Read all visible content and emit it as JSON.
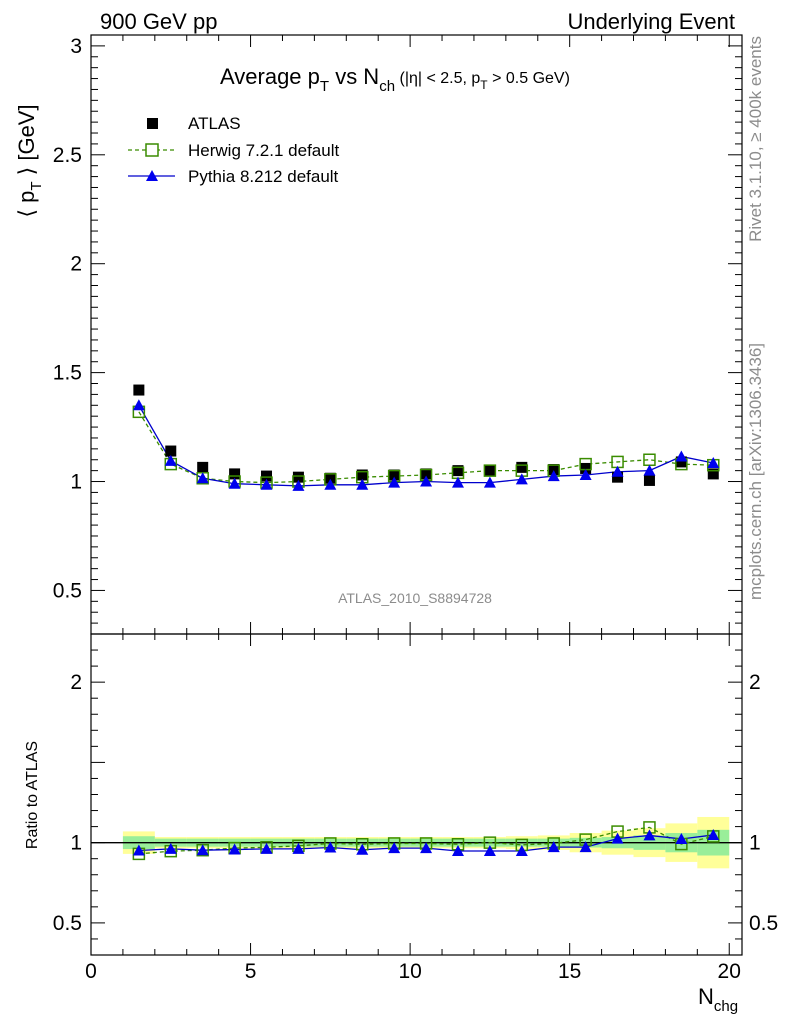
{
  "header": {
    "left": "900 GeV pp",
    "right": "Underlying Event"
  },
  "side": {
    "rivet": "Rivet 3.1.10, ≥ 400k events",
    "mcplots": "mcplots.cern.ch [arXiv:1306.3436]"
  },
  "chart_data": [
    {
      "type": "scatter",
      "title": {
        "a": "Average p",
        "a_sub": "T",
        "b": " vs N",
        "b_sub": "ch",
        "c": " (|η| < 2.5, p",
        "c_sub": "T",
        "d": " > 0.5 GeV)"
      },
      "ylabel": {
        "pre": "⟨ p",
        "sub": "T",
        "post": " ⟩ [GeV]"
      },
      "watermark": "ATLAS_2010_S8894728",
      "ylim": [
        0.3,
        3.05
      ],
      "xlim": [
        0,
        20.4
      ],
      "yticks": [
        0.5,
        1,
        1.5,
        2,
        2.5,
        3
      ],
      "ytick_labels": [
        "0.5",
        "1",
        "1.5",
        "2",
        "2.5",
        "3"
      ],
      "legend": {
        "atlas": "ATLAS",
        "herwig": "Herwig 7.2.1 default",
        "pythia": "Pythia 8.212 default"
      },
      "x": [
        1.5,
        2.5,
        3.5,
        4.5,
        5.5,
        6.5,
        7.5,
        8.5,
        9.5,
        10.5,
        11.5,
        12.5,
        13.5,
        14.5,
        15.5,
        16.5,
        17.5,
        18.5,
        19.5
      ],
      "series": [
        {
          "name": "ATLAS",
          "values": [
            1.42,
            1.14,
            1.065,
            1.035,
            1.025,
            1.02,
            1.015,
            1.03,
            1.03,
            1.035,
            1.05,
            1.05,
            1.065,
            1.055,
            1.06,
            1.02,
            1.005,
            1.09,
            1.035
          ]
        },
        {
          "name": "Herwig 7.2.1 default",
          "values": [
            1.32,
            1.08,
            1.015,
            1.0,
            0.995,
            1.0,
            1.01,
            1.02,
            1.025,
            1.03,
            1.04,
            1.05,
            1.05,
            1.05,
            1.08,
            1.09,
            1.1,
            1.08,
            1.075
          ]
        },
        {
          "name": "Pythia 8.212 default",
          "values": [
            1.35,
            1.095,
            1.015,
            0.99,
            0.985,
            0.98,
            0.985,
            0.985,
            0.995,
            1.0,
            0.995,
            0.995,
            1.01,
            1.025,
            1.03,
            1.045,
            1.05,
            1.115,
            1.085
          ]
        }
      ]
    },
    {
      "type": "scatter",
      "ylabel": "Ratio to ATLAS",
      "xlabel": {
        "main": "N",
        "sub": "chg"
      },
      "ylim": [
        0.3,
        2.3
      ],
      "xlim": [
        0,
        20.4
      ],
      "yticks": [
        0.5,
        1,
        2
      ],
      "ytick_labels": [
        "0.5",
        "1",
        "2"
      ],
      "xticks": [
        0,
        5,
        10,
        15,
        20
      ],
      "xtick_labels": [
        "0",
        "5",
        "10",
        "15",
        "20"
      ],
      "x": [
        1.5,
        2.5,
        3.5,
        4.5,
        5.5,
        6.5,
        7.5,
        8.5,
        9.5,
        10.5,
        11.5,
        12.5,
        13.5,
        14.5,
        15.5,
        16.5,
        17.5,
        18.5,
        19.5
      ],
      "band_stat_half": [
        0.04,
        0.025,
        0.025,
        0.025,
        0.025,
        0.025,
        0.025,
        0.025,
        0.025,
        0.025,
        0.025,
        0.025,
        0.025,
        0.025,
        0.03,
        0.035,
        0.045,
        0.06,
        0.08
      ],
      "band_total_half": [
        0.07,
        0.035,
        0.035,
        0.035,
        0.035,
        0.035,
        0.035,
        0.035,
        0.035,
        0.035,
        0.035,
        0.035,
        0.04,
        0.045,
        0.06,
        0.075,
        0.09,
        0.12,
        0.16
      ],
      "series": [
        {
          "name": "Herwig 7.2.1 default",
          "values": [
            0.93,
            0.947,
            0.953,
            0.966,
            0.971,
            0.98,
            0.995,
            0.99,
            0.995,
            0.995,
            0.99,
            1.0,
            0.986,
            0.995,
            1.019,
            1.069,
            1.095,
            0.991,
            1.039
          ]
        },
        {
          "name": "Pythia 8.212 default",
          "values": [
            0.951,
            0.961,
            0.953,
            0.957,
            0.961,
            0.961,
            0.97,
            0.956,
            0.966,
            0.966,
            0.948,
            0.948,
            0.948,
            0.972,
            0.972,
            1.025,
            1.045,
            1.023,
            1.048
          ]
        }
      ]
    }
  ]
}
